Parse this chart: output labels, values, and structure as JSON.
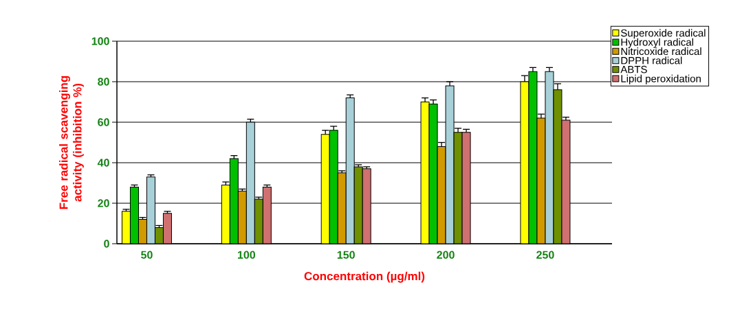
{
  "chart_data": {
    "type": "bar",
    "xlabel": "Concentration (µg/ml)",
    "ylabel": "Free radical scavenging activity (inhibition %)",
    "categories": [
      "50",
      "100",
      "150",
      "200",
      "250"
    ],
    "series": [
      {
        "name": "Superoxide radical",
        "color": "#ffff00",
        "values": [
          16,
          29,
          54,
          70,
          80
        ],
        "errors": [
          1,
          1.5,
          2,
          2,
          3
        ]
      },
      {
        "name": "Hydroxyl radical",
        "color": "#00c000",
        "values": [
          28,
          42,
          56,
          69,
          85
        ],
        "errors": [
          1,
          1.5,
          2,
          2,
          2
        ]
      },
      {
        "name": "Nitricoxide radical",
        "color": "#d09a00",
        "values": [
          12,
          26,
          35,
          48,
          62
        ],
        "errors": [
          1,
          1,
          1,
          2,
          2
        ]
      },
      {
        "name": "DPPH radical",
        "color": "#a8d0d8",
        "values": [
          33,
          60,
          72,
          78,
          85
        ],
        "errors": [
          1,
          1.5,
          1.5,
          2,
          2
        ]
      },
      {
        "name": "ABTS",
        "color": "#6f9000",
        "values": [
          8,
          22,
          38,
          55,
          76
        ],
        "errors": [
          1,
          1,
          1,
          2,
          3
        ]
      },
      {
        "name": "Lipid peroxidation",
        "color": "#d07070",
        "values": [
          15,
          28,
          37,
          55,
          61
        ],
        "errors": [
          1,
          1,
          1,
          1.5,
          1.5
        ]
      }
    ],
    "ylim": [
      0,
      100
    ],
    "yticks": [
      0,
      20,
      40,
      60,
      80,
      100
    ],
    "grid": "y",
    "legend": "top right",
    "marker": "none"
  }
}
